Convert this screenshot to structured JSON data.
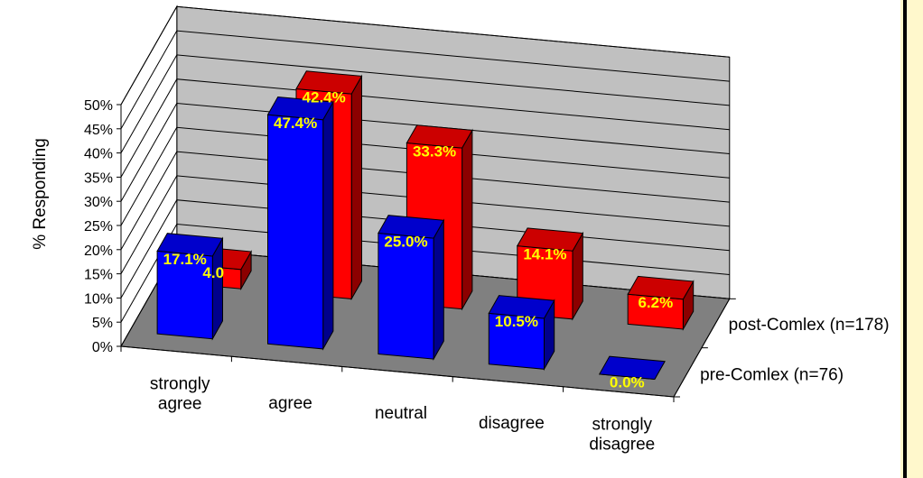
{
  "chart_data": {
    "type": "bar",
    "variant": "3d-column",
    "title": "",
    "ylabel": "% Responding",
    "xlabel": "",
    "categories": [
      "strongly agree",
      "agree",
      "neutral",
      "disagree",
      "strongly disagree"
    ],
    "category_lines": [
      [
        "strongly",
        "agree"
      ],
      [
        "agree"
      ],
      [
        "neutral"
      ],
      [
        "disagree"
      ],
      [
        "strongly",
        "disagree"
      ]
    ],
    "series": [
      {
        "name": "pre-Comlex (n=76)",
        "values": [
          17.1,
          47.4,
          25.0,
          10.5,
          0.0
        ],
        "labels": [
          "17.1%",
          "47.4%",
          "25.0%",
          "10.5%",
          "0.0%"
        ],
        "color": "#0000ff"
      },
      {
        "name": "post-Comlex (n=178)",
        "values": [
          4.0,
          42.4,
          33.3,
          14.1,
          6.2
        ],
        "labels": [
          "4.0",
          "42.4%",
          "33.3%",
          "14.1%",
          "6.2%"
        ],
        "color": "#ff0000"
      }
    ],
    "ylim": [
      0,
      50
    ],
    "yticks": [
      "0%",
      "5%",
      "10%",
      "15%",
      "20%",
      "25%",
      "30%",
      "35%",
      "40%",
      "45%",
      "50%"
    ],
    "grid": true,
    "data_label_color": "#ffff00",
    "wall_color": "#c0c0c0",
    "floor_color": "#808080"
  }
}
